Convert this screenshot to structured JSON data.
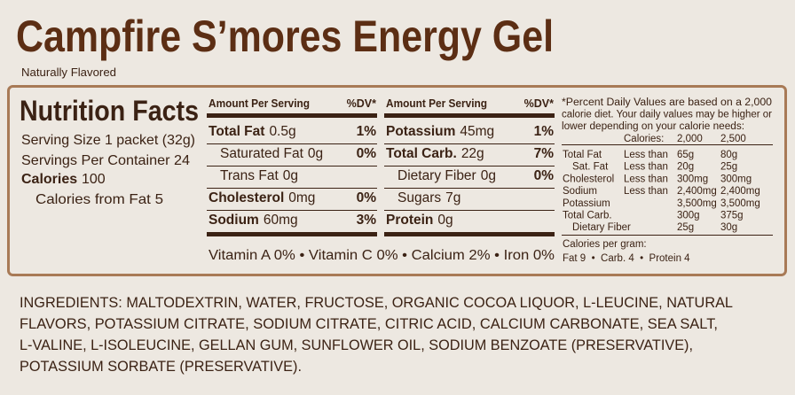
{
  "header": {
    "title": "Campfire S’mores Energy Gel",
    "subtitle": "Naturally Flavored"
  },
  "facts": {
    "title": "Nutrition Facts",
    "serving_size": "Serving Size 1 packet (32g)",
    "servings": "Servings Per Container 24",
    "calories_label": "Calories",
    "calories_value": "100",
    "calories_from_fat": "Calories from Fat  5"
  },
  "left_table": {
    "header": {
      "amount": "Amount Per Serving",
      "dv": "%DV*"
    },
    "rows": [
      {
        "name": "Total Fat",
        "amount": "0.5g",
        "dv": "1%"
      },
      {
        "name": "Saturated Fat",
        "amount": "0g",
        "dv": "0%"
      },
      {
        "name": "Trans Fat",
        "amount": "0g"
      },
      {
        "name": "Cholesterol",
        "amount": "0mg",
        "dv": "0%"
      },
      {
        "name": "Sodium",
        "amount": "60mg",
        "dv": "3%"
      }
    ]
  },
  "right_table": {
    "header": {
      "amount": "Amount Per Serving",
      "dv": "%DV*"
    },
    "rows": [
      {
        "name": "Potassium",
        "amount": "45mg",
        "dv": "1%"
      },
      {
        "name": "Total Carb.",
        "amount": "22g",
        "dv": "7%"
      },
      {
        "name": "Dietary Fiber",
        "amount": "0g",
        "dv": "0%"
      },
      {
        "name": "Sugars",
        "amount": "7g"
      },
      {
        "name": "Protein",
        "amount": "0g"
      }
    ]
  },
  "vitamins": "Vitamin A 0% • Vitamin C 0% • Calcium 2% • Iron 0%",
  "footnote": {
    "lines": [
      "*Percent Daily Values are based on a 2,000",
      "calorie diet. Your daily values may be higher or",
      "lower depending on your calorie needs:"
    ],
    "columns": [
      "Calories:",
      "2,000",
      "2,500"
    ],
    "rows": [
      {
        "name": "Total Fat",
        "limit": "Less than",
        "v2000": "65g",
        "v2500": "80g"
      },
      {
        "name": "Sat. Fat",
        "limit": "Less than",
        "v2000": "20g",
        "v2500": "25g"
      },
      {
        "name": "Cholesterol",
        "limit": "Less than",
        "v2000": "300mg",
        "v2500": "300mg"
      },
      {
        "name": "Sodium",
        "limit": "Less than",
        "v2000": "2,400mg",
        "v2500": "2,400mg"
      },
      {
        "name": "Potassium",
        "v2000": "3,500mg",
        "v2500": "3,500mg"
      },
      {
        "name": "Total Carb.",
        "v2000": "300g",
        "v2500": "375g"
      },
      {
        "name": "Dietary Fiber",
        "v2000": "25g",
        "v2500": "30g"
      }
    ],
    "per_gram_title": "Calories per gram:",
    "per_gram": "Fat 9  •  Carb. 4  •  Protein 4"
  },
  "ingredients": [
    "INGREDIENTS: MALTODEXTRIN, WATER, FRUCTOSE, ORGANIC COCOA LIQUOR, L-LEUCINE, NATURAL",
    "FLAVORS, POTASSIUM CITRATE, SODIUM CITRATE, CITRIC ACID, CALCIUM CARBONATE, SEA SALT,",
    "L-VALINE, L-ISOLEUCINE, GELLAN GUM, SUNFLOWER OIL, SODIUM BENZOATE (PRESERVATIVE),",
    "POTASSIUM SORBATE (PRESERVATIVE)."
  ]
}
